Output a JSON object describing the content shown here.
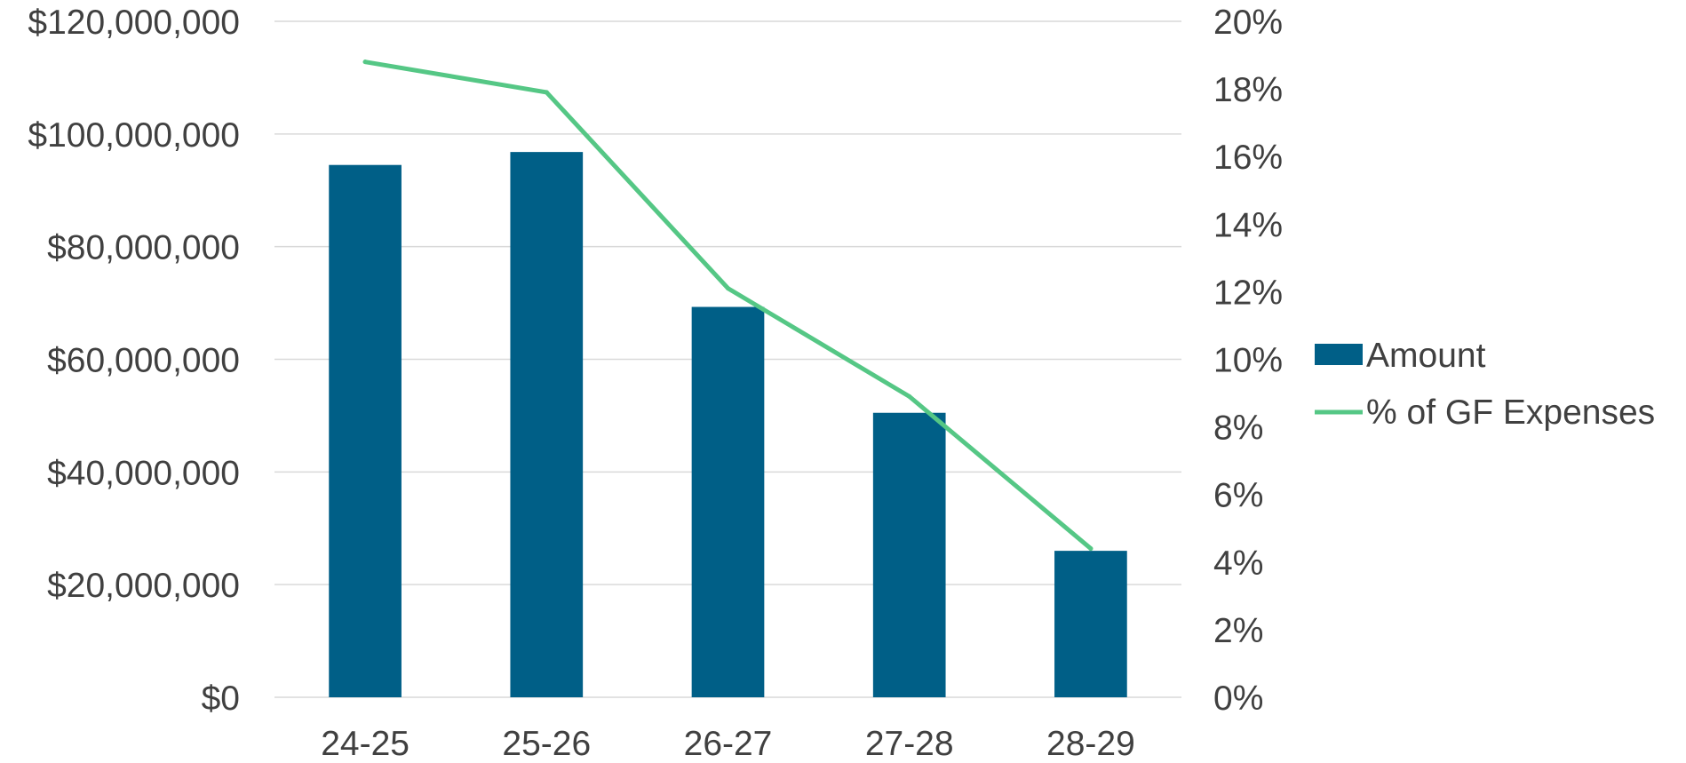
{
  "chart_data": {
    "type": "bar",
    "categories": [
      "24-25",
      "25-26",
      "26-27",
      "27-28",
      "28-29"
    ],
    "series": [
      {
        "name": "Amount",
        "type": "bar",
        "axis": "left",
        "color": "#005f87",
        "values": [
          94500000,
          96800000,
          69300000,
          50500000,
          26000000
        ]
      },
      {
        "name": "% of GF Expenses",
        "type": "line",
        "axis": "right",
        "color": "#55c785",
        "values": [
          18.8,
          17.9,
          12.1,
          8.9,
          4.4
        ]
      }
    ],
    "left_axis": {
      "min": 0,
      "max": 120000000,
      "step": 20000000,
      "tick_labels": [
        "$0",
        "$20,000,000",
        "$40,000,000",
        "$60,000,000",
        "$80,000,000",
        "$100,000,000",
        "$120,000,000"
      ]
    },
    "right_axis": {
      "min": 0,
      "max": 20,
      "step": 2,
      "tick_labels": [
        "0%",
        "2%",
        "4%",
        "6%",
        "8%",
        "10%",
        "12%",
        "14%",
        "16%",
        "18%",
        "20%"
      ]
    },
    "grid": true,
    "legend": {
      "position": "right",
      "entries": [
        "Amount",
        "% of GF Expenses"
      ]
    },
    "title": "",
    "xlabel": "",
    "ylabel": ""
  }
}
